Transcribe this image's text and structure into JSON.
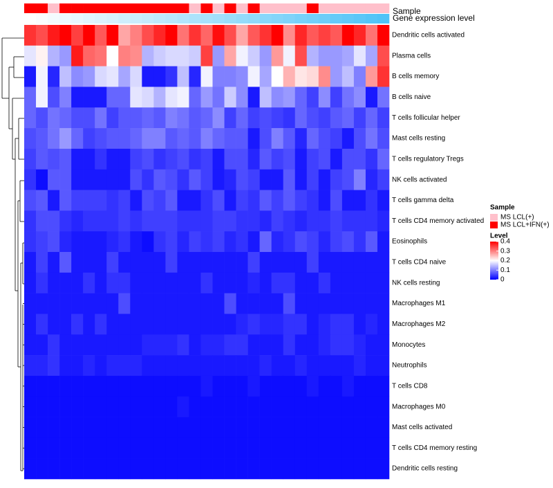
{
  "chart_data": {
    "type": "heatmap",
    "annotation_labels": {
      "sample": "Sample",
      "gene_expression": "Gene expression level"
    },
    "rows": [
      "Dendritic cells activated",
      "Plasma cells",
      "B cells memory",
      "B cells naive",
      "T cells follicular helper",
      "Mast cells resting",
      "T cells regulatory  Tregs",
      "NK cells activated",
      "T cells gamma delta",
      "T cells CD4 memory activated",
      "Eosinophils",
      "T cells CD4 naive",
      "NK cells resting",
      "Macrophages M1",
      "Macrophages M2",
      "Monocytes",
      "Neutrophils",
      "T cells CD8",
      "Macrophages M0",
      "Mast cells activated",
      "T cells CD4 memory resting",
      "Dendritic cells resting"
    ],
    "n_columns": 31,
    "sample_groups": [
      1,
      1,
      0,
      1,
      1,
      1,
      1,
      1,
      1,
      1,
      1,
      1,
      1,
      1,
      0,
      1,
      0,
      1,
      0,
      1,
      0,
      0,
      0,
      0,
      1,
      0,
      0,
      0,
      0,
      0,
      0
    ],
    "gene_expression_levels": [
      0.0,
      0.03,
      0.07,
      0.1,
      0.13,
      0.17,
      0.2,
      0.23,
      0.27,
      0.3,
      0.33,
      0.37,
      0.4,
      0.43,
      0.47,
      0.5,
      0.53,
      0.57,
      0.6,
      0.63,
      0.67,
      0.7,
      0.73,
      0.77,
      0.8,
      0.83,
      0.87,
      0.9,
      0.93,
      0.97,
      1.0
    ],
    "values": [
      [
        0.36,
        0.34,
        0.38,
        0.4,
        0.35,
        0.4,
        0.33,
        0.4,
        0.27,
        0.3,
        0.34,
        0.37,
        0.4,
        0.31,
        0.36,
        0.32,
        0.39,
        0.34,
        0.27,
        0.33,
        0.36,
        0.4,
        0.29,
        0.37,
        0.33,
        0.35,
        0.33,
        0.4,
        0.37,
        0.31,
        0.4
      ],
      [
        0.18,
        0.21,
        0.14,
        0.12,
        0.38,
        0.32,
        0.31,
        0.2,
        0.3,
        0.29,
        0.14,
        0.16,
        0.17,
        0.17,
        0.16,
        0.35,
        0.12,
        0.27,
        0.19,
        0.16,
        0.12,
        0.28,
        0.19,
        0.34,
        0.14,
        0.12,
        0.12,
        0.13,
        0.18,
        0.13,
        0.34
      ],
      [
        0.02,
        0.19,
        0.03,
        0.15,
        0.11,
        0.12,
        0.17,
        0.18,
        0.13,
        0.17,
        0.02,
        0.02,
        0.04,
        0.15,
        0.03,
        0.19,
        0.1,
        0.1,
        0.11,
        0.19,
        0.13,
        0.2,
        0.26,
        0.22,
        0.23,
        0.29,
        0.12,
        0.15,
        0.1,
        0.28,
        0.36
      ],
      [
        0.08,
        0.19,
        0.06,
        0.1,
        0.02,
        0.02,
        0.02,
        0.08,
        0.08,
        0.18,
        0.17,
        0.14,
        0.18,
        0.19,
        0.08,
        0.12,
        0.09,
        0.16,
        0.11,
        0.02,
        0.15,
        0.11,
        0.12,
        0.08,
        0.05,
        0.11,
        0.05,
        0.09,
        0.11,
        0.02,
        0.09
      ],
      [
        0.08,
        0.06,
        0.09,
        0.08,
        0.06,
        0.06,
        0.09,
        0.05,
        0.07,
        0.07,
        0.08,
        0.07,
        0.1,
        0.09,
        0.07,
        0.08,
        0.11,
        0.05,
        0.08,
        0.05,
        0.06,
        0.05,
        0.04,
        0.08,
        0.06,
        0.05,
        0.07,
        0.08,
        0.05,
        0.08,
        0.05
      ],
      [
        0.06,
        0.07,
        0.09,
        0.12,
        0.08,
        0.05,
        0.06,
        0.07,
        0.07,
        0.08,
        0.1,
        0.1,
        0.07,
        0.08,
        0.07,
        0.1,
        0.08,
        0.07,
        0.07,
        0.02,
        0.06,
        0.1,
        0.07,
        0.03,
        0.08,
        0.06,
        0.05,
        0.02,
        0.06,
        0.09,
        0.06
      ],
      [
        0.05,
        0.07,
        0.06,
        0.07,
        0.02,
        0.02,
        0.04,
        0.02,
        0.02,
        0.05,
        0.06,
        0.04,
        0.05,
        0.06,
        0.04,
        0.05,
        0.02,
        0.06,
        0.06,
        0.03,
        0.07,
        0.05,
        0.06,
        0.02,
        0.05,
        0.06,
        0.02,
        0.06,
        0.06,
        0.04,
        0.08
      ],
      [
        0.04,
        0.01,
        0.07,
        0.07,
        0.02,
        0.02,
        0.02,
        0.02,
        0.02,
        0.06,
        0.04,
        0.07,
        0.06,
        0.04,
        0.07,
        0.05,
        0.02,
        0.03,
        0.06,
        0.05,
        0.02,
        0.02,
        0.07,
        0.02,
        0.05,
        0.02,
        0.05,
        0.06,
        0.1,
        0.03,
        0.05
      ],
      [
        0.06,
        0.07,
        0.02,
        0.07,
        0.05,
        0.05,
        0.05,
        0.04,
        0.05,
        0.02,
        0.06,
        0.05,
        0.07,
        0.02,
        0.02,
        0.04,
        0.06,
        0.02,
        0.05,
        0.04,
        0.07,
        0.05,
        0.07,
        0.05,
        0.04,
        0.02,
        0.06,
        0.02,
        0.02,
        0.04,
        0.02
      ],
      [
        0.04,
        0.06,
        0.06,
        0.04,
        0.03,
        0.04,
        0.04,
        0.04,
        0.05,
        0.04,
        0.05,
        0.05,
        0.05,
        0.04,
        0.04,
        0.04,
        0.05,
        0.05,
        0.04,
        0.04,
        0.03,
        0.05,
        0.04,
        0.03,
        0.04,
        0.04,
        0.05,
        0.04,
        0.04,
        0.04,
        0.03
      ],
      [
        0.04,
        0.05,
        0.06,
        0.03,
        0.02,
        0.02,
        0.02,
        0.03,
        0.04,
        0.02,
        0.01,
        0.04,
        0.05,
        0.03,
        0.05,
        0.04,
        0.05,
        0.03,
        0.04,
        0.02,
        0.08,
        0.03,
        0.04,
        0.06,
        0.05,
        0.03,
        0.05,
        0.06,
        0.04,
        0.07,
        0.02
      ],
      [
        0.02,
        0.05,
        0.02,
        0.07,
        0.02,
        0.02,
        0.02,
        0.05,
        0.02,
        0.02,
        0.02,
        0.02,
        0.05,
        0.02,
        0.02,
        0.02,
        0.02,
        0.02,
        0.02,
        0.05,
        0.02,
        0.02,
        0.02,
        0.02,
        0.05,
        0.02,
        0.02,
        0.02,
        0.02,
        0.02,
        0.02
      ],
      [
        0.02,
        0.04,
        0.02,
        0.02,
        0.02,
        0.04,
        0.02,
        0.04,
        0.04,
        0.02,
        0.02,
        0.02,
        0.02,
        0.02,
        0.02,
        0.04,
        0.02,
        0.02,
        0.02,
        0.03,
        0.02,
        0.04,
        0.04,
        0.02,
        0.02,
        0.04,
        0.02,
        0.02,
        0.02,
        0.02,
        0.02
      ],
      [
        0.02,
        0.02,
        0.02,
        0.02,
        0.02,
        0.02,
        0.02,
        0.02,
        0.06,
        0.02,
        0.02,
        0.02,
        0.02,
        0.02,
        0.02,
        0.02,
        0.02,
        0.06,
        0.02,
        0.02,
        0.02,
        0.02,
        0.06,
        0.02,
        0.02,
        0.02,
        0.02,
        0.02,
        0.02,
        0.02,
        0.02
      ],
      [
        0.02,
        0.04,
        0.02,
        0.02,
        0.04,
        0.02,
        0.04,
        0.02,
        0.02,
        0.02,
        0.02,
        0.02,
        0.02,
        0.02,
        0.02,
        0.02,
        0.02,
        0.02,
        0.03,
        0.04,
        0.03,
        0.03,
        0.04,
        0.04,
        0.02,
        0.03,
        0.04,
        0.04,
        0.02,
        0.03,
        0.02
      ],
      [
        0.02,
        0.02,
        0.04,
        0.02,
        0.02,
        0.02,
        0.02,
        0.02,
        0.02,
        0.02,
        0.03,
        0.03,
        0.03,
        0.04,
        0.02,
        0.03,
        0.03,
        0.04,
        0.04,
        0.02,
        0.02,
        0.02,
        0.04,
        0.02,
        0.02,
        0.03,
        0.04,
        0.04,
        0.03,
        0.02,
        0.02
      ],
      [
        0.03,
        0.03,
        0.04,
        0.02,
        0.02,
        0.03,
        0.02,
        0.03,
        0.03,
        0.03,
        0.02,
        0.02,
        0.02,
        0.02,
        0.02,
        0.02,
        0.02,
        0.02,
        0.02,
        0.02,
        0.03,
        0.02,
        0.02,
        0.03,
        0.02,
        0.02,
        0.02,
        0.02,
        0.03,
        0.02,
        0.02
      ],
      [
        0.01,
        0.01,
        0.01,
        0.01,
        0.01,
        0.01,
        0.01,
        0.01,
        0.01,
        0.01,
        0.01,
        0.01,
        0.01,
        0.01,
        0.01,
        0.02,
        0.01,
        0.01,
        0.01,
        0.02,
        0.01,
        0.01,
        0.01,
        0.01,
        0.02,
        0.01,
        0.01,
        0.02,
        0.01,
        0.01,
        0.01
      ],
      [
        0.01,
        0.01,
        0.01,
        0.01,
        0.01,
        0.01,
        0.01,
        0.01,
        0.01,
        0.01,
        0.01,
        0.01,
        0.01,
        0.02,
        0.01,
        0.01,
        0.01,
        0.01,
        0.01,
        0.01,
        0.01,
        0.01,
        0.01,
        0.01,
        0.01,
        0.01,
        0.01,
        0.01,
        0.01,
        0.01,
        0.01
      ],
      [
        0.01,
        0.01,
        0.01,
        0.01,
        0.01,
        0.01,
        0.01,
        0.01,
        0.01,
        0.01,
        0.01,
        0.01,
        0.01,
        0.01,
        0.01,
        0.01,
        0.01,
        0.01,
        0.01,
        0.01,
        0.01,
        0.01,
        0.01,
        0.01,
        0.01,
        0.01,
        0.01,
        0.01,
        0.01,
        0.01,
        0.01
      ],
      [
        0.01,
        0.01,
        0.01,
        0.01,
        0.01,
        0.01,
        0.01,
        0.01,
        0.01,
        0.01,
        0.01,
        0.01,
        0.01,
        0.01,
        0.01,
        0.01,
        0.01,
        0.01,
        0.01,
        0.01,
        0.01,
        0.01,
        0.01,
        0.01,
        0.01,
        0.01,
        0.01,
        0.01,
        0.01,
        0.01,
        0.01
      ],
      [
        0.01,
        0.01,
        0.01,
        0.01,
        0.01,
        0.01,
        0.01,
        0.01,
        0.01,
        0.01,
        0.01,
        0.01,
        0.01,
        0.01,
        0.01,
        0.01,
        0.01,
        0.01,
        0.01,
        0.01,
        0.01,
        0.01,
        0.01,
        0.01,
        0.01,
        0.01,
        0.01,
        0.01,
        0.01,
        0.01,
        0.01
      ]
    ],
    "legend": {
      "sample_title": "Sample",
      "sample_entries": [
        {
          "label": "MS LCL(+)",
          "color": "#ffc0cb"
        },
        {
          "label": "MS LCL+IFN(+)",
          "color": "#ff0000"
        }
      ],
      "level_title": "Level",
      "level_ticks": [
        "0.4",
        "0.3",
        "0.2",
        "0.1",
        "0"
      ],
      "level_range": [
        0,
        0.4
      ]
    },
    "colors": {
      "low": "#0000ff",
      "mid": "#ffffff",
      "high": "#ff0000",
      "expr_low": "#ffffff",
      "expr_high": "#4fc3f7"
    }
  }
}
